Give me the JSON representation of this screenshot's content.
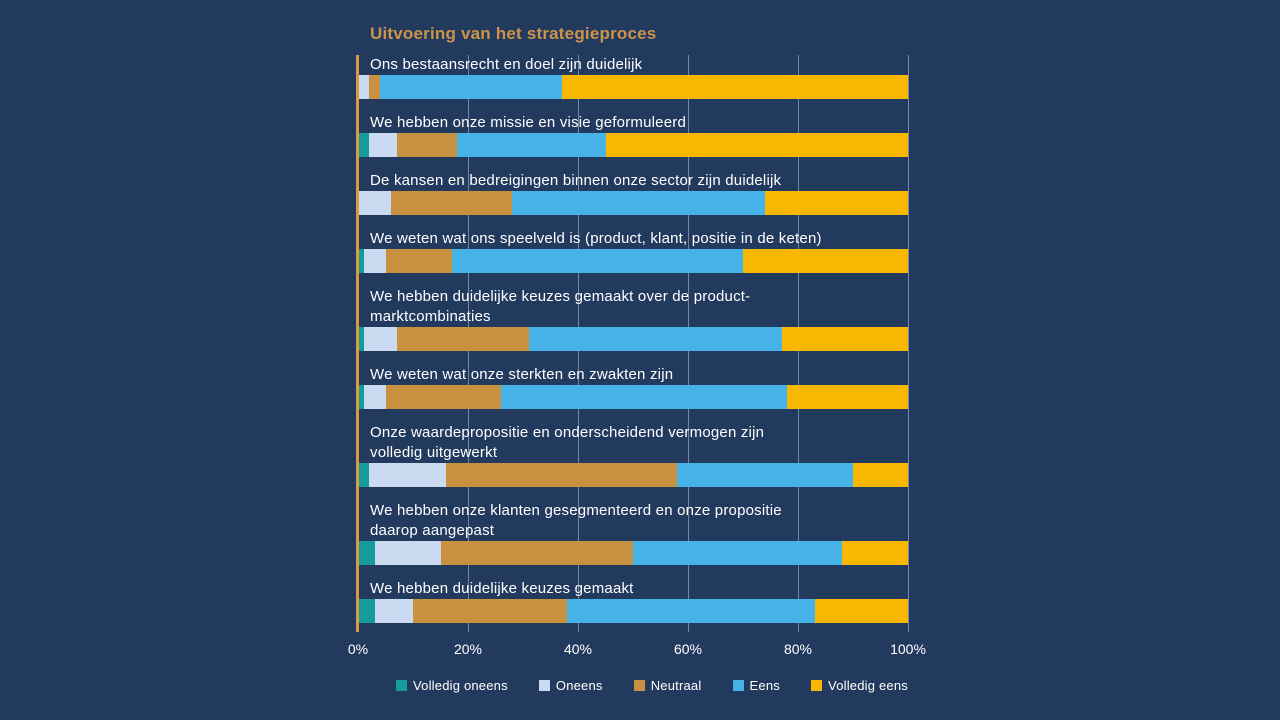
{
  "chart_data": {
    "type": "bar",
    "stacked": true,
    "orientation": "horizontal",
    "title": "Uitvoering van het strategieproces",
    "xlabel": "",
    "ylabel": "",
    "x_range": [
      0,
      100
    ],
    "grid_percents": [
      20,
      40,
      60,
      80,
      100
    ],
    "x_ticks": [
      {
        "label": "0%",
        "value": 0
      },
      {
        "label": "20%",
        "value": 20
      },
      {
        "label": "40%",
        "value": 40
      },
      {
        "label": "60%",
        "value": 60
      },
      {
        "label": "80%",
        "value": 80
      },
      {
        "label": "100%",
        "value": 100
      }
    ],
    "legend_position": "bottom",
    "series": [
      {
        "name": "Volledig oneens",
        "color": "#159B9B"
      },
      {
        "name": "Oneens",
        "color": "#C9DAF1"
      },
      {
        "name": "Neutraal",
        "color": "#C79140"
      },
      {
        "name": "Eens",
        "color": "#45B3E7"
      },
      {
        "name": "Volledig eens",
        "color": "#F8B700"
      }
    ],
    "rows": [
      {
        "label": "Ons bestaansrecht en doel zijn duidelijk",
        "values": [
          0,
          2,
          2,
          33,
          63
        ]
      },
      {
        "label": "We hebben onze missie en visie geformuleerd",
        "values": [
          2,
          5,
          11,
          27,
          55
        ]
      },
      {
        "label": "De kansen en bedreigingen binnen onze sector zijn duidelijk",
        "values": [
          0,
          6,
          22,
          46,
          26
        ]
      },
      {
        "label": "We weten wat ons speelveld is (product, klant, positie in de keten)",
        "values": [
          1,
          4,
          12,
          53,
          30
        ]
      },
      {
        "label": "We hebben duidelijke keuzes gemaakt over de product-\nmarktcombinaties",
        "values": [
          1,
          6,
          24,
          46,
          23
        ]
      },
      {
        "label": "We weten wat onze sterkten en zwakten zijn",
        "values": [
          1,
          4,
          21,
          52,
          22
        ]
      },
      {
        "label": "Onze waardepropositie en onderscheidend vermogen zijn\nvolledig uitgewerkt",
        "values": [
          2,
          14,
          42,
          32,
          10
        ]
      },
      {
        "label": "We hebben onze klanten gesegmenteerd en onze propositie\ndaarop aangepast",
        "values": [
          3,
          12,
          35,
          38,
          12
        ]
      },
      {
        "label": "We hebben duidelijke keuzes gemaakt",
        "values": [
          3,
          7,
          28,
          45,
          17
        ]
      }
    ],
    "colors": {
      "background": "#233A5F",
      "title": "#CC9349",
      "axis_line": "#D99B3C",
      "gridline": "rgba(255,255,255,0.38)",
      "text": "#FFFFFF"
    }
  }
}
